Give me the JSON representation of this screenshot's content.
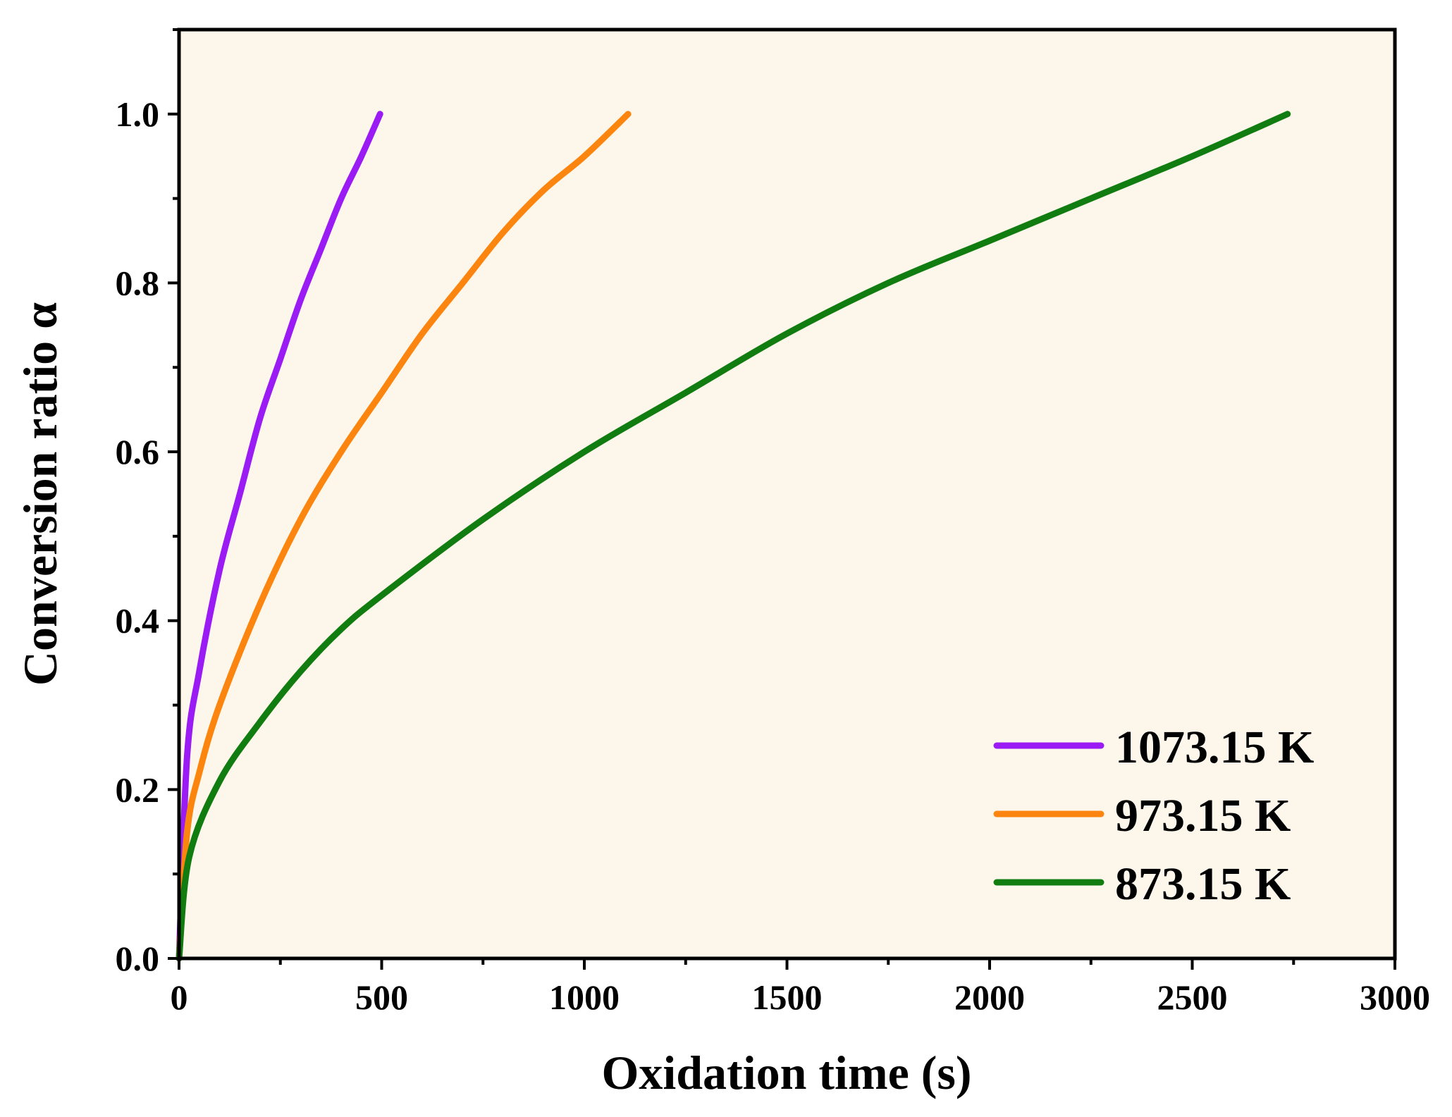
{
  "chart_data": {
    "type": "line",
    "title": "",
    "xlabel": "Oxidation time (s)",
    "ylabel": "Conversion ratio α",
    "xlim": [
      0,
      3000
    ],
    "ylim": [
      0,
      1.1
    ],
    "xticks": [
      0,
      500,
      1000,
      1500,
      2000,
      2500,
      3000
    ],
    "xtick_labels": [
      "0",
      "500",
      "1000",
      "1500",
      "2000",
      "2500",
      "3000"
    ],
    "yticks": [
      0.0,
      0.2,
      0.4,
      0.6,
      0.8,
      1.0
    ],
    "ytick_labels": [
      "0.0",
      "0.2",
      "0.4",
      "0.6",
      "0.8",
      "1.0"
    ],
    "grid": false,
    "legend_position": "bottom-right",
    "plot_background": "#fdf6ea",
    "series": [
      {
        "name": "1073.15 K",
        "color": "#9b1bf5",
        "x": [
          0,
          20,
          50,
          100,
          150,
          200,
          250,
          300,
          350,
          400,
          450,
          496
        ],
        "y": [
          0.0,
          0.24,
          0.34,
          0.46,
          0.55,
          0.64,
          0.71,
          0.78,
          0.84,
          0.9,
          0.95,
          1.0
        ]
      },
      {
        "name": "973.15 K",
        "color": "#fb850f",
        "x": [
          0,
          20,
          50,
          100,
          200,
          300,
          400,
          500,
          600,
          700,
          800,
          900,
          1000,
          1108
        ],
        "y": [
          0.0,
          0.15,
          0.22,
          0.3,
          0.42,
          0.52,
          0.6,
          0.67,
          0.74,
          0.8,
          0.86,
          0.91,
          0.95,
          1.0
        ]
      },
      {
        "name": "873.15 K",
        "color": "#117d11",
        "x": [
          0,
          25,
          100,
          200,
          300,
          400,
          500,
          750,
          1000,
          1250,
          1500,
          1750,
          2000,
          2250,
          2500,
          2735
        ],
        "y": [
          0.0,
          0.12,
          0.21,
          0.28,
          0.34,
          0.39,
          0.43,
          0.52,
          0.6,
          0.67,
          0.74,
          0.8,
          0.85,
          0.9,
          0.95,
          1.0
        ]
      }
    ]
  }
}
